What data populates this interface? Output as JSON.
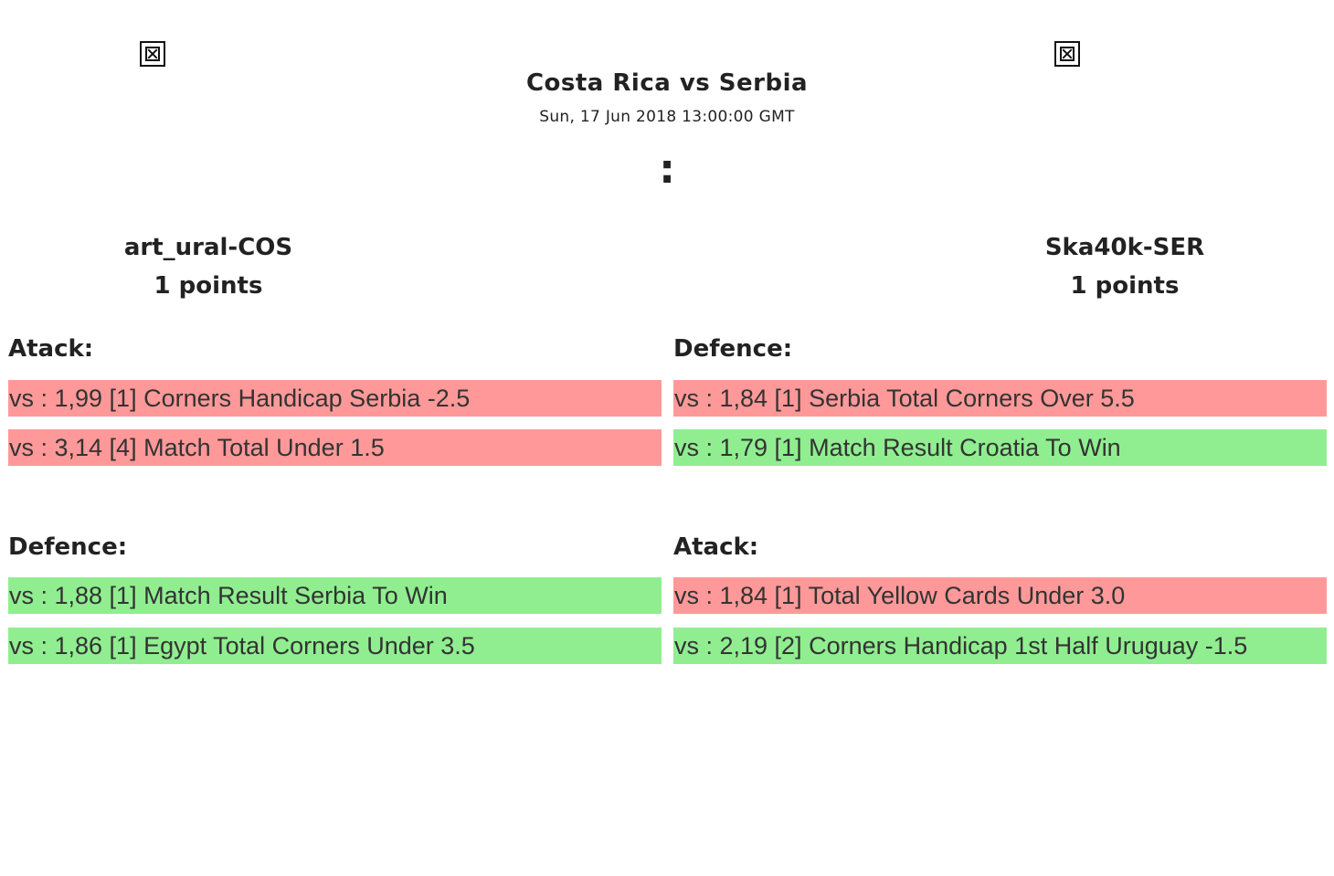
{
  "match": {
    "title": "Costa Rica vs Serbia",
    "date": "Sun, 17 Jun 2018 13:00:00 GMT",
    "score_separator": ":"
  },
  "flags": {
    "left_icon": "broken-image-icon",
    "right_icon": "broken-image-icon"
  },
  "teams": {
    "left": {
      "name": "art_ural-COS",
      "points": "1 points"
    },
    "right": {
      "name": "Ska40k-SER",
      "points": "1 points"
    }
  },
  "left": {
    "attack": {
      "heading": "Atack:",
      "bets": [
        {
          "text": "vs : 1,99 [1] Corners Handicap Serbia -2.5",
          "status": "lost"
        },
        {
          "text": "vs : 3,14 [4] Match Total Under 1.5",
          "status": "lost"
        }
      ]
    },
    "defence": {
      "heading": "Defence:",
      "bets": [
        {
          "text": "vs : 1,88 [1] Match Result Serbia To Win",
          "status": "won"
        },
        {
          "text": "vs : 1,86 [1] Egypt Total Corners Under 3.5",
          "status": "won"
        }
      ]
    }
  },
  "right": {
    "defence": {
      "heading": "Defence:",
      "bets": [
        {
          "text": "vs : 1,84 [1] Serbia Total Corners Over 5.5",
          "status": "lost"
        },
        {
          "text": "vs : 1,79 [1] Match Result Croatia To Win",
          "status": "won"
        }
      ]
    },
    "attack": {
      "heading": "Atack:",
      "bets": [
        {
          "text": "vs : 1,84 [1] Total Yellow Cards Under 3.0",
          "status": "lost"
        },
        {
          "text": "vs : 2,19 [2] Corners Handicap 1st Half Uruguay -1.5",
          "status": "won"
        }
      ]
    }
  },
  "colors": {
    "lost": "#ff9999",
    "won": "#90ee90"
  }
}
